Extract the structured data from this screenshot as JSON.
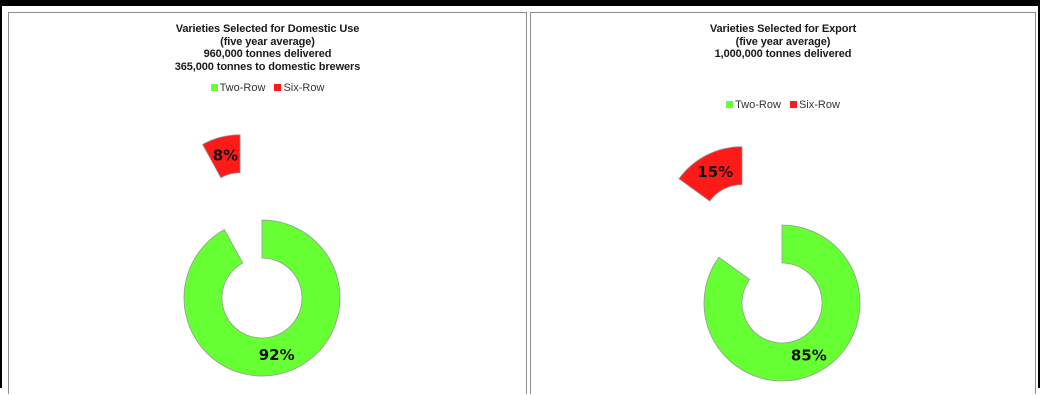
{
  "colors": {
    "two_row": "#66ff33",
    "six_row": "#ff1a1a",
    "outline": "#999999"
  },
  "chart_data": [
    {
      "type": "pie",
      "title": "Varieties Selected for Domestic Use",
      "subtitle_lines": [
        "(five year average)",
        "960,000 tonnes delivered",
        "365,000 tonnes to domestic brewers"
      ],
      "legend": [
        {
          "name": "Two-Row"
        },
        {
          "name": "Six-Row"
        }
      ],
      "slices": [
        {
          "name": "Two-Row",
          "value": 92,
          "label": "92%"
        },
        {
          "name": "Six-Row",
          "value": 8,
          "label": "8%"
        }
      ]
    },
    {
      "type": "pie",
      "title": "Varieties Selected for Export",
      "subtitle_lines": [
        "(five year average)",
        "1,000,000 tonnes delivered"
      ],
      "legend": [
        {
          "name": "Two-Row"
        },
        {
          "name": "Six-Row"
        }
      ],
      "slices": [
        {
          "name": "Two-Row",
          "value": 85,
          "label": "85%"
        },
        {
          "name": "Six-Row",
          "value": 15,
          "label": "15%"
        }
      ]
    }
  ]
}
